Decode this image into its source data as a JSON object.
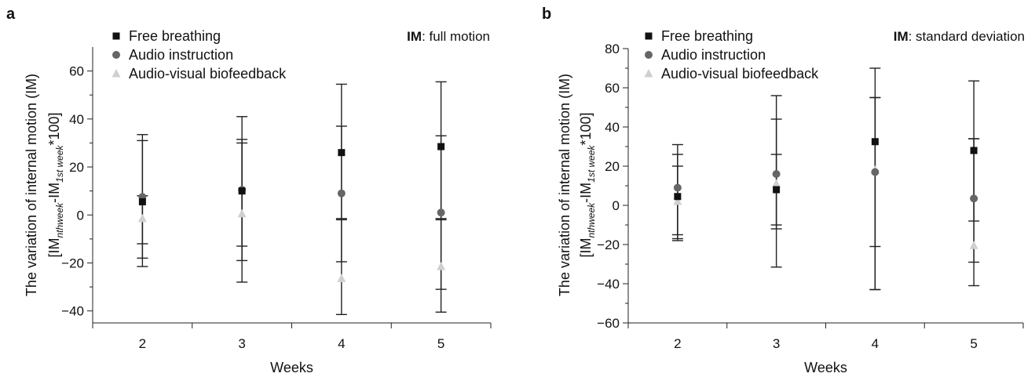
{
  "chart_data": [
    {
      "panel_label": "a",
      "type": "scatter",
      "annotation_prefix": "IM",
      "annotation_rest": ": full motion",
      "xlabel": "Weeks",
      "ylabel_line1": "The variation of  internal motion (IM)",
      "ylabel_line2_parts": [
        "[IM",
        "nthweek",
        "-IM",
        "1st week",
        "*100]"
      ],
      "categories": [
        "2",
        "3",
        "4",
        "5"
      ],
      "ylim": [
        -45,
        70
      ],
      "yticks": [
        -40,
        -20,
        0,
        20,
        40,
        60
      ],
      "ytick_labels": [
        "−40",
        "−20",
        "0",
        "20",
        "40",
        "60"
      ],
      "legend_position": "top-left",
      "series": [
        {
          "name": "Free breathing",
          "color": "#111111",
          "marker": "square",
          "values": [
            5.5,
            10,
            26,
            28.5
          ],
          "err_low": [
            -18,
            -13,
            -2,
            -31
          ],
          "err_high": [
            31,
            30,
            54.5,
            55.5
          ]
        },
        {
          "name": "Audio instruction",
          "color": "#666666",
          "marker": "circle",
          "values": [
            7.5,
            10.5,
            9,
            1
          ],
          "err_low": [
            -12,
            -19,
            -19.5,
            -2
          ],
          "err_high": [
            33.5,
            41,
            37,
            33
          ]
        },
        {
          "name": "Audio-visual biofeedback",
          "color": "#d0d0d0",
          "marker": "triangle",
          "values": [
            -1.5,
            0.5,
            -26.5,
            -21.5
          ],
          "err_low": [
            -21.5,
            -28,
            -41.5,
            -40.5
          ],
          "err_high": [
            8,
            31.5,
            -1.5,
            -1.5
          ]
        }
      ]
    },
    {
      "panel_label": "b",
      "type": "scatter",
      "annotation_prefix": "IM",
      "annotation_rest": ": standard deviation",
      "xlabel": "Weeks",
      "ylabel_line1": "The variation of  internal motion (IM)",
      "ylabel_line2_parts": [
        "[IM",
        "nthweek",
        "-IM",
        "1st week",
        "*100]"
      ],
      "categories": [
        "2",
        "3",
        "4",
        "5"
      ],
      "ylim": [
        -60,
        80
      ],
      "yticks": [
        -60,
        -40,
        -20,
        0,
        20,
        40,
        60,
        80
      ],
      "ytick_labels": [
        "−60",
        "−40",
        "−20",
        "0",
        "20",
        "40",
        "60",
        "80"
      ],
      "legend_position": "top-left",
      "series": [
        {
          "name": "Free breathing",
          "color": "#111111",
          "marker": "square",
          "values": [
            4.5,
            8,
            32.5,
            28
          ],
          "err_low": [
            -17,
            -10,
            -43,
            -29
          ],
          "err_high": [
            26,
            26,
            55,
            34
          ]
        },
        {
          "name": "Audio instruction",
          "color": "#666666",
          "marker": "circle",
          "values": [
            9,
            16,
            17,
            3.5
          ],
          "err_low": [
            -15,
            -12,
            -21,
            -8
          ],
          "err_high": [
            31,
            44,
            55,
            34
          ]
        },
        {
          "name": "Audio-visual biofeedback",
          "color": "#d0d0d0",
          "marker": "triangle",
          "values": [
            2,
            11,
            18,
            -20.5
          ],
          "err_low": [
            -18,
            -31.5,
            -43,
            -41
          ],
          "err_high": [
            20,
            56,
            70,
            63.5
          ]
        }
      ]
    }
  ]
}
